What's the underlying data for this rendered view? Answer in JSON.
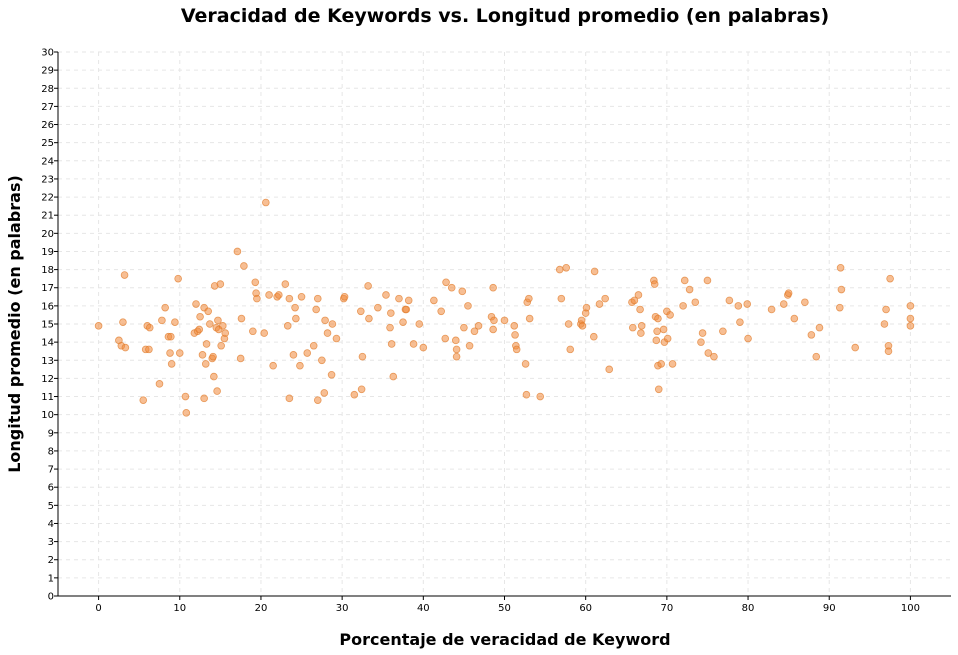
{
  "chart_data": {
    "type": "scatter",
    "title": "Veracidad de Keywords vs. Longitud promedio (en palabras)",
    "xlabel": "Porcentaje de veracidad de Keyword",
    "ylabel": "Longitud promedio (en palabras)",
    "xlim": [
      -5,
      105
    ],
    "ylim": [
      0,
      30
    ],
    "xticks": [
      0,
      10,
      20,
      30,
      40,
      50,
      60,
      70,
      80,
      90,
      100
    ],
    "yticks": [
      0,
      1,
      2,
      3,
      4,
      5,
      6,
      7,
      8,
      9,
      10,
      11,
      12,
      13,
      14,
      15,
      16,
      17,
      18,
      19,
      20,
      21,
      22,
      23,
      24,
      25,
      26,
      27,
      28,
      29,
      30
    ],
    "grid": true,
    "point_color": "#f0883a",
    "points": [
      [
        0,
        14.9
      ],
      [
        2.5,
        14.1
      ],
      [
        2.8,
        13.8
      ],
      [
        3,
        15.1
      ],
      [
        3.2,
        17.7
      ],
      [
        3.3,
        13.7
      ],
      [
        5.5,
        10.8
      ],
      [
        5.8,
        13.6
      ],
      [
        6,
        14.9
      ],
      [
        6.2,
        13.6
      ],
      [
        6.3,
        14.8
      ],
      [
        7.5,
        11.7
      ],
      [
        7.8,
        15.2
      ],
      [
        8.2,
        15.9
      ],
      [
        8.6,
        14.3
      ],
      [
        8.8,
        13.4
      ],
      [
        8.9,
        14.3
      ],
      [
        9,
        12.8
      ],
      [
        9.4,
        15.1
      ],
      [
        9.8,
        17.5
      ],
      [
        10,
        13.4
      ],
      [
        10.7,
        11
      ],
      [
        10.8,
        10.1
      ],
      [
        11.8,
        14.5
      ],
      [
        12,
        16.1
      ],
      [
        12.2,
        14.6
      ],
      [
        12.4,
        14.7
      ],
      [
        12.5,
        15.4
      ],
      [
        12.8,
        13.3
      ],
      [
        13,
        15.9
      ],
      [
        13,
        10.9
      ],
      [
        13.2,
        12.8
      ],
      [
        13.3,
        13.9
      ],
      [
        13.5,
        15.7
      ],
      [
        13.7,
        15
      ],
      [
        14,
        13.1
      ],
      [
        14.1,
        13.2
      ],
      [
        14.2,
        12.1
      ],
      [
        14.3,
        17.1
      ],
      [
        14.5,
        14.8
      ],
      [
        14.6,
        11.3
      ],
      [
        14.7,
        15.2
      ],
      [
        14.8,
        14.7
      ],
      [
        15,
        17.2
      ],
      [
        15.1,
        13.8
      ],
      [
        15.3,
        14.9
      ],
      [
        15.5,
        14.2
      ],
      [
        15.6,
        14.5
      ],
      [
        17.1,
        19
      ],
      [
        17.5,
        13.1
      ],
      [
        17.6,
        15.3
      ],
      [
        17.9,
        18.2
      ],
      [
        19,
        14.6
      ],
      [
        19.3,
        17.3
      ],
      [
        19.4,
        16.7
      ],
      [
        19.5,
        16.4
      ],
      [
        20.4,
        14.5
      ],
      [
        20.6,
        21.7
      ],
      [
        21,
        16.6
      ],
      [
        21.5,
        12.7
      ],
      [
        22,
        16.5
      ],
      [
        22.2,
        16.6
      ],
      [
        23,
        17.2
      ],
      [
        23.3,
        14.9
      ],
      [
        23.5,
        16.4
      ],
      [
        23.5,
        10.9
      ],
      [
        24,
        13.3
      ],
      [
        24.2,
        15.9
      ],
      [
        24.3,
        15.3
      ],
      [
        24.8,
        12.7
      ],
      [
        25,
        16.5
      ],
      [
        25.7,
        13.4
      ],
      [
        26.5,
        13.8
      ],
      [
        26.8,
        15.8
      ],
      [
        27,
        16.4
      ],
      [
        27,
        10.8
      ],
      [
        27.5,
        13
      ],
      [
        27.8,
        11.2
      ],
      [
        27.9,
        15.2
      ],
      [
        28.2,
        14.5
      ],
      [
        28.7,
        12.2
      ],
      [
        28.8,
        15
      ],
      [
        29.3,
        14.2
      ],
      [
        30.2,
        16.4
      ],
      [
        30.3,
        16.5
      ],
      [
        31.5,
        11.1
      ],
      [
        32.3,
        15.7
      ],
      [
        32.4,
        11.4
      ],
      [
        32.5,
        13.2
      ],
      [
        33.2,
        17.1
      ],
      [
        33.3,
        15.3
      ],
      [
        34.4,
        15.9
      ],
      [
        35.4,
        16.6
      ],
      [
        35.9,
        14.8
      ],
      [
        36,
        15.6
      ],
      [
        36.1,
        13.9
      ],
      [
        36.3,
        12.1
      ],
      [
        37,
        16.4
      ],
      [
        37.5,
        15.1
      ],
      [
        37.8,
        15.8
      ],
      [
        37.9,
        15.8
      ],
      [
        38.2,
        16.3
      ],
      [
        38.8,
        13.9
      ],
      [
        39.5,
        15
      ],
      [
        40,
        13.7
      ],
      [
        41.3,
        16.3
      ],
      [
        42.2,
        15.7
      ],
      [
        42.7,
        14.2
      ],
      [
        42.8,
        17.3
      ],
      [
        43.5,
        17
      ],
      [
        44,
        14.1
      ],
      [
        44.1,
        13.6
      ],
      [
        44.1,
        13.2
      ],
      [
        44.8,
        16.8
      ],
      [
        45,
        14.8
      ],
      [
        45.5,
        16
      ],
      [
        45.7,
        13.8
      ],
      [
        46.3,
        14.6
      ],
      [
        46.8,
        14.9
      ],
      [
        48.4,
        15.4
      ],
      [
        48.6,
        17
      ],
      [
        48.6,
        14.7
      ],
      [
        48.7,
        15.2
      ],
      [
        50,
        15.2
      ],
      [
        51.2,
        14.9
      ],
      [
        51.3,
        14.4
      ],
      [
        51.4,
        13.8
      ],
      [
        51.5,
        13.6
      ],
      [
        52.6,
        12.8
      ],
      [
        52.8,
        16.2
      ],
      [
        53,
        16.4
      ],
      [
        53.1,
        15.3
      ],
      [
        52.7,
        11.1
      ],
      [
        54.4,
        11
      ],
      [
        56.8,
        18
      ],
      [
        57,
        16.4
      ],
      [
        57.6,
        18.1
      ],
      [
        57.9,
        15
      ],
      [
        58.1,
        13.6
      ],
      [
        59.4,
        15
      ],
      [
        59.5,
        15.2
      ],
      [
        59.6,
        14.9
      ],
      [
        60,
        15.6
      ],
      [
        60.1,
        15.9
      ],
      [
        61,
        14.3
      ],
      [
        61.1,
        17.9
      ],
      [
        61.7,
        16.1
      ],
      [
        62.4,
        16.4
      ],
      [
        62.9,
        12.5
      ],
      [
        65.7,
        16.2
      ],
      [
        65.8,
        14.8
      ],
      [
        66,
        16.3
      ],
      [
        66.5,
        16.6
      ],
      [
        66.7,
        15.8
      ],
      [
        66.9,
        14.9
      ],
      [
        66.8,
        14.5
      ],
      [
        68.4,
        17.4
      ],
      [
        68.5,
        17.2
      ],
      [
        68.6,
        15.4
      ],
      [
        68.7,
        14.1
      ],
      [
        68.8,
        14.6
      ],
      [
        68.9,
        15.3
      ],
      [
        68.9,
        12.7
      ],
      [
        69,
        11.4
      ],
      [
        69.3,
        12.8
      ],
      [
        69.6,
        14.7
      ],
      [
        69.7,
        14
      ],
      [
        70,
        15.7
      ],
      [
        70.1,
        14.2
      ],
      [
        70.4,
        15.5
      ],
      [
        70.7,
        12.8
      ],
      [
        72,
        16
      ],
      [
        72.2,
        17.4
      ],
      [
        72.8,
        16.9
      ],
      [
        73.5,
        16.2
      ],
      [
        74.2,
        14
      ],
      [
        74.4,
        14.5
      ],
      [
        75,
        17.4
      ],
      [
        75.1,
        13.4
      ],
      [
        75.8,
        13.2
      ],
      [
        76.9,
        14.6
      ],
      [
        77.7,
        16.3
      ],
      [
        78.8,
        16
      ],
      [
        79,
        15.1
      ],
      [
        79.9,
        16.1
      ],
      [
        80,
        14.2
      ],
      [
        82.9,
        15.8
      ],
      [
        84.4,
        16.1
      ],
      [
        84.9,
        16.6
      ],
      [
        85,
        16.7
      ],
      [
        85.7,
        15.3
      ],
      [
        87,
        16.2
      ],
      [
        87.8,
        14.4
      ],
      [
        88.4,
        13.2
      ],
      [
        88.8,
        14.8
      ],
      [
        91.3,
        15.9
      ],
      [
        91.4,
        18.1
      ],
      [
        91.5,
        16.9
      ],
      [
        93.2,
        13.7
      ],
      [
        96.8,
        15
      ],
      [
        97,
        15.8
      ],
      [
        97.3,
        13.5
      ],
      [
        97.3,
        13.8
      ],
      [
        97.5,
        17.5
      ],
      [
        100,
        16
      ],
      [
        100,
        15.3
      ],
      [
        100,
        14.9
      ]
    ]
  }
}
